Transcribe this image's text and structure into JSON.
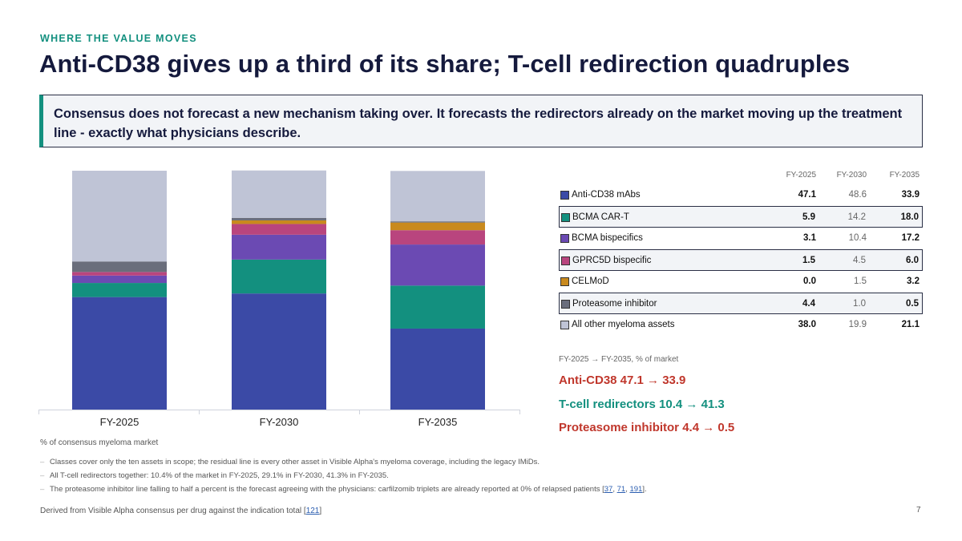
{
  "header": {
    "eyebrow": "WHERE THE VALUE MOVES",
    "title": "Anti-CD38 gives up a third of its share; T-cell redirection quadruples"
  },
  "callout": {
    "text": "Consensus does not forecast a new mechanism taking over. It forecasts the redirectors already on the market moving up the treatment line - exactly what physicians describe."
  },
  "chart_data": {
    "type": "bar",
    "stacked": true,
    "categories": [
      "FY-2025",
      "FY-2030",
      "FY-2035"
    ],
    "ylabel": "% of consensus myeloma market",
    "ylim": [
      0,
      100
    ],
    "grid": false,
    "series": [
      {
        "name": "Anti-CD38 mAbs",
        "color": "#3b4aa6",
        "values": [
          47.1,
          48.6,
          33.9
        ]
      },
      {
        "name": "BCMA CAR-T",
        "color": "#13907f",
        "values": [
          5.9,
          14.2,
          18.0
        ]
      },
      {
        "name": "BCMA bispecifics",
        "color": "#6b4ab3",
        "values": [
          3.1,
          10.4,
          17.2
        ]
      },
      {
        "name": "GPRC5D bispecific",
        "color": "#b9457e",
        "values": [
          1.5,
          4.5,
          6.0
        ]
      },
      {
        "name": "CELMoD",
        "color": "#c98a1e",
        "values": [
          0.0,
          1.5,
          3.2
        ]
      },
      {
        "name": "Proteasome inhibitor",
        "color": "#6a6e7c",
        "values": [
          4.4,
          1.0,
          0.5
        ]
      },
      {
        "name": "All other myeloma assets",
        "color": "#bfc4d6",
        "values": [
          38.0,
          19.9,
          21.1
        ]
      }
    ]
  },
  "table": {
    "headers": [
      "FY-2025",
      "FY-2030",
      "FY-2035"
    ],
    "rows": [
      {
        "label": "Anti-CD38 mAbs",
        "v1": "47.1",
        "v2": "48.6",
        "v3": "33.9"
      },
      {
        "label": "BCMA CAR-T",
        "v1": "5.9",
        "v2": "14.2",
        "v3": "18.0"
      },
      {
        "label": "BCMA bispecifics",
        "v1": "3.1",
        "v2": "10.4",
        "v3": "17.2"
      },
      {
        "label": "GPRC5D bispecific",
        "v1": "1.5",
        "v2": "4.5",
        "v3": "6.0"
      },
      {
        "label": "CELMoD",
        "v1": "0.0",
        "v2": "1.5",
        "v3": "3.2"
      },
      {
        "label": "Proteasome inhibitor",
        "v1": "4.4",
        "v2": "1.0",
        "v3": "0.5"
      },
      {
        "label": "All other myeloma assets",
        "v1": "38.0",
        "v2": "19.9",
        "v3": "21.1"
      }
    ]
  },
  "moves": {
    "caption": "FY-2025 → FY-2035, % of market",
    "items": [
      {
        "label": "Anti-CD38  47.1 → 33.9",
        "color": "#c0372c"
      },
      {
        "label": "T-cell redirectors  10.4 → 41.3",
        "color": "#13907f"
      },
      {
        "label": "Proteasome inhibitor  4.4 → 0.5",
        "color": "#c0372c"
      }
    ]
  },
  "unit_note": "% of consensus myeloma market",
  "notes": {
    "n1": "Classes cover only the ten assets in scope; the residual line is every other asset in Visible Alpha's myeloma coverage, including the legacy IMiDs.",
    "n2": "All T-cell redirectors together: 10.4% of the market in FY-2025, 29.1% in FY-2030, 41.3% in FY-2035.",
    "n3_text": "The proteasome inhibitor line falling to half a percent is the forecast agreeing with the physicians: carfilzomib triplets are already reported at 0% of relapsed patients [",
    "n3_ref1": "37",
    "n3_sep1": ", ",
    "n3_ref2": "71",
    "n3_sep2": ", ",
    "n3_ref3": "191",
    "n3_end": "]."
  },
  "footer": {
    "text": "Derived from Visible Alpha consensus per drug against the indication total [",
    "ref": "121",
    "end": "]"
  },
  "page_number": "7"
}
